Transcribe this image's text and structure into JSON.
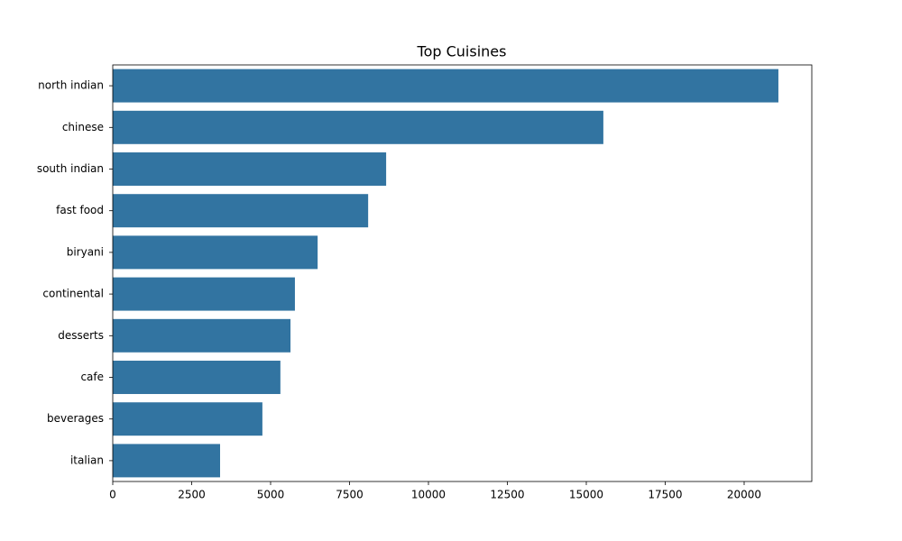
{
  "chart_data": {
    "type": "barh",
    "title": "Top Cuisines",
    "categories": [
      "north indian",
      "chinese",
      "south indian",
      "fast food",
      "biryani",
      "continental",
      "desserts",
      "cafe",
      "beverages",
      "italian"
    ],
    "values": [
      21085,
      15540,
      8660,
      8090,
      6490,
      5770,
      5630,
      5310,
      4740,
      3400
    ],
    "color": "#3274a1",
    "xlim": [
      0,
      22143
    ],
    "xticks": [
      0,
      2500,
      5000,
      7500,
      10000,
      12500,
      15000,
      17500,
      20000
    ]
  }
}
